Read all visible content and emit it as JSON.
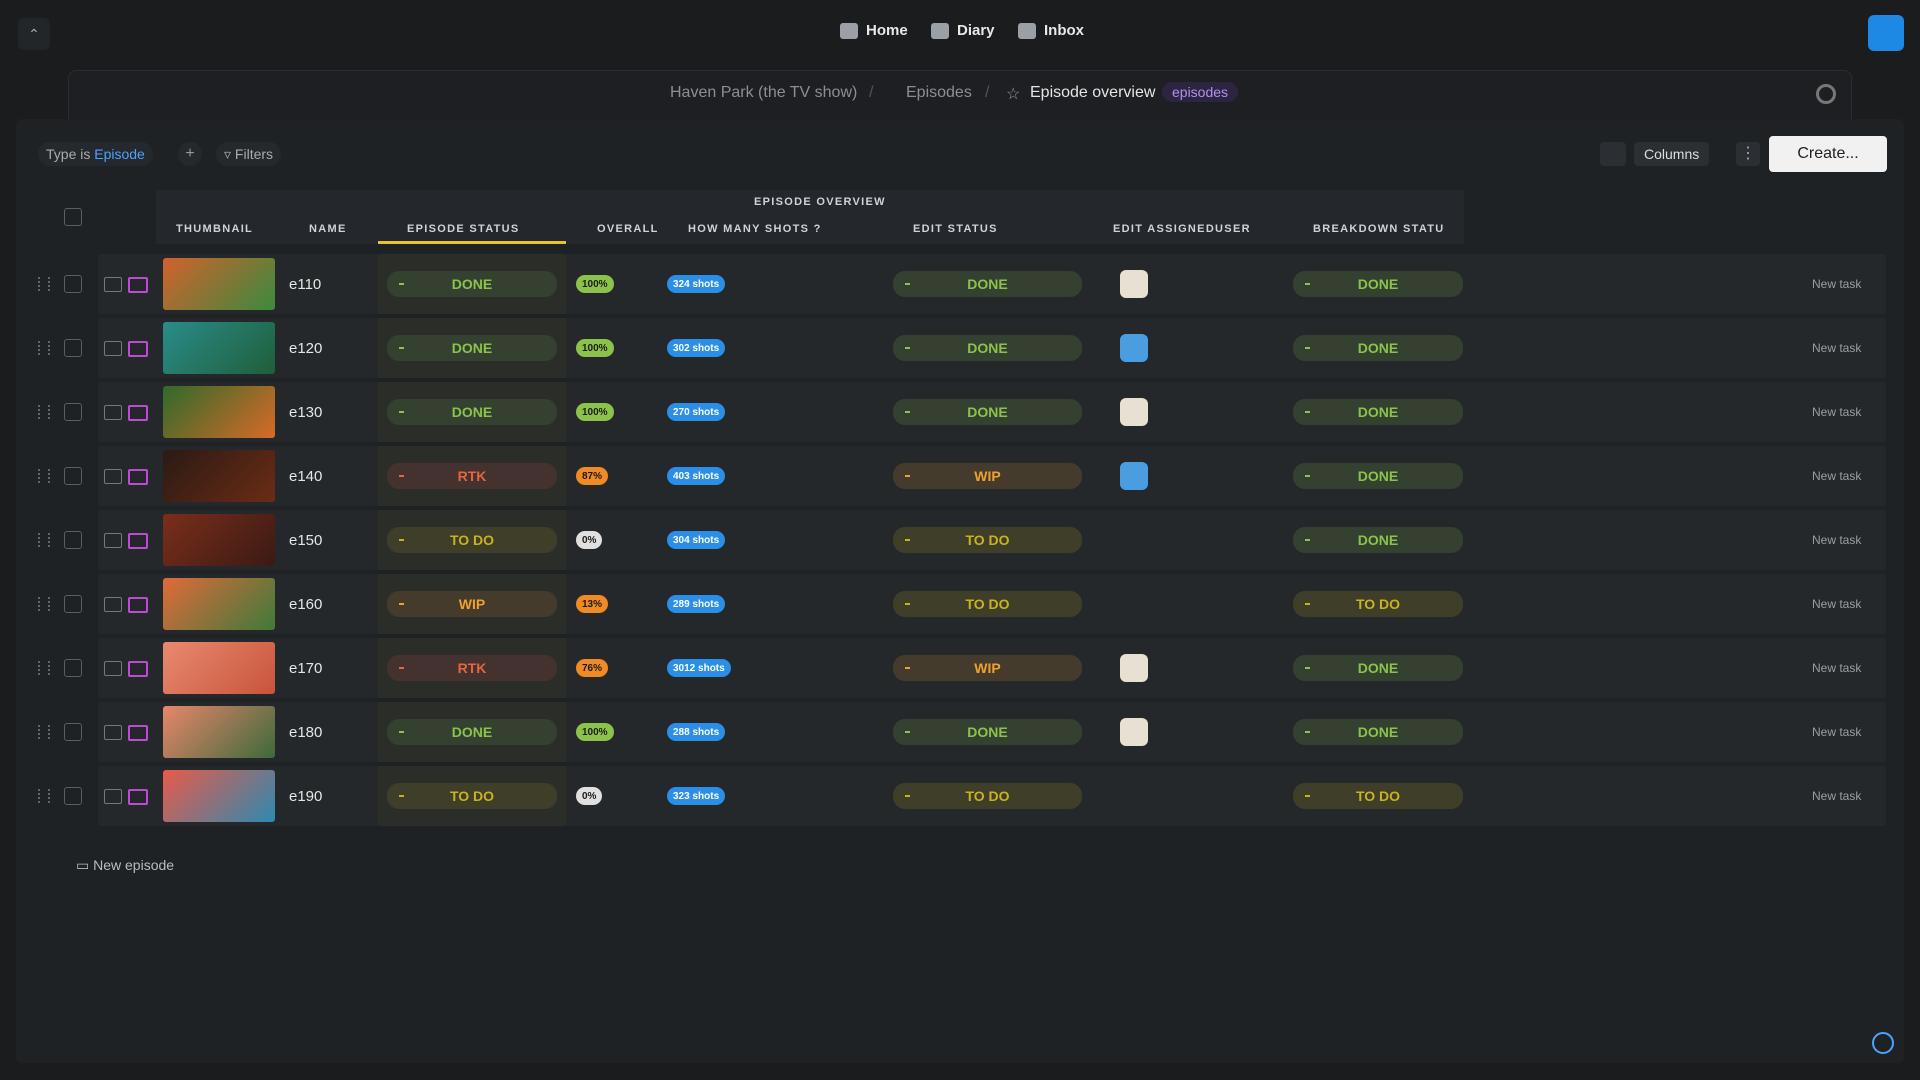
{
  "nav": {
    "home": "Home",
    "diary": "Diary",
    "inbox": "Inbox"
  },
  "breadcrumb": {
    "project": "Haven Park (the TV show)",
    "section": "Episodes",
    "page": "Episode overview",
    "tag": "episodes"
  },
  "toolbar": {
    "filter_label": "Type is",
    "filter_value": "Episode",
    "filters": "Filters",
    "columns": "Columns",
    "create": "Create..."
  },
  "table": {
    "group_header": "EPISODE OVERVIEW",
    "columns": [
      "THUMBNAIL",
      "NAME",
      "EPISODE STATUS",
      "OVERALL",
      "HOW MANY SHOTS ?",
      "EDIT STATUS",
      "EDIT ASSIGNEDUSER",
      "BREAKDOWN STATU"
    ],
    "action": "New task",
    "rows": [
      {
        "name": "e110",
        "episode_status": {
          "label": "DONE",
          "color": "#8bc34a"
        },
        "overall": {
          "label": "100%",
          "color": "#8bc34a"
        },
        "shots": "324 shots",
        "edit_status": {
          "label": "DONE",
          "color": "#8bc34a"
        },
        "breakdown_status": {
          "label": "DONE",
          "color": "#8bc34a"
        }
      },
      {
        "name": "e120",
        "episode_status": {
          "label": "DONE",
          "color": "#8bc34a"
        },
        "overall": {
          "label": "100%",
          "color": "#8bc34a"
        },
        "shots": "302 shots",
        "edit_status": {
          "label": "DONE",
          "color": "#8bc34a"
        },
        "breakdown_status": {
          "label": "DONE",
          "color": "#8bc34a"
        }
      },
      {
        "name": "e130",
        "episode_status": {
          "label": "DONE",
          "color": "#8bc34a"
        },
        "overall": {
          "label": "100%",
          "color": "#8bc34a"
        },
        "shots": "270 shots",
        "edit_status": {
          "label": "DONE",
          "color": "#8bc34a"
        },
        "breakdown_status": {
          "label": "DONE",
          "color": "#8bc34a"
        }
      },
      {
        "name": "e140",
        "episode_status": {
          "label": "RTK",
          "color": "#e8643c"
        },
        "overall": {
          "label": "87%",
          "color": "#f08a24"
        },
        "shots": "403 shots",
        "edit_status": {
          "label": "WIP",
          "color": "#f0a030"
        },
        "breakdown_status": {
          "label": "DONE",
          "color": "#8bc34a"
        }
      },
      {
        "name": "e150",
        "episode_status": {
          "label": "TO DO",
          "color": "#c9b21f"
        },
        "overall": {
          "label": "0%",
          "color": "#e0e0e0"
        },
        "shots": "304 shots",
        "edit_status": {
          "label": "TO DO",
          "color": "#c9b21f"
        },
        "breakdown_status": {
          "label": "DONE",
          "color": "#8bc34a"
        }
      },
      {
        "name": "e160",
        "episode_status": {
          "label": "WIP",
          "color": "#f0a030"
        },
        "overall": {
          "label": "13%",
          "color": "#f08a24"
        },
        "shots": "289 shots",
        "edit_status": {
          "label": "TO DO",
          "color": "#c9b21f"
        },
        "breakdown_status": {
          "label": "TO DO",
          "color": "#c9b21f"
        }
      },
      {
        "name": "e170",
        "episode_status": {
          "label": "RTK",
          "color": "#e8643c"
        },
        "overall": {
          "label": "76%",
          "color": "#f08a24"
        },
        "shots": "3012 shots",
        "edit_status": {
          "label": "WIP",
          "color": "#f0a030"
        },
        "breakdown_status": {
          "label": "DONE",
          "color": "#8bc34a"
        }
      },
      {
        "name": "e180",
        "episode_status": {
          "label": "DONE",
          "color": "#8bc34a"
        },
        "overall": {
          "label": "100%",
          "color": "#8bc34a"
        },
        "shots": "288 shots",
        "edit_status": {
          "label": "DONE",
          "color": "#8bc34a"
        },
        "breakdown_status": {
          "label": "DONE",
          "color": "#8bc34a"
        }
      },
      {
        "name": "e190",
        "episode_status": {
          "label": "TO DO",
          "color": "#c9b21f"
        },
        "overall": {
          "label": "0%",
          "color": "#e0e0e0"
        },
        "shots": "323 shots",
        "edit_status": {
          "label": "TO DO",
          "color": "#c9b21f"
        },
        "breakdown_status": {
          "label": "TO DO",
          "color": "#c9b21f"
        }
      }
    ]
  },
  "footer": {
    "new_episode": "New episode"
  }
}
